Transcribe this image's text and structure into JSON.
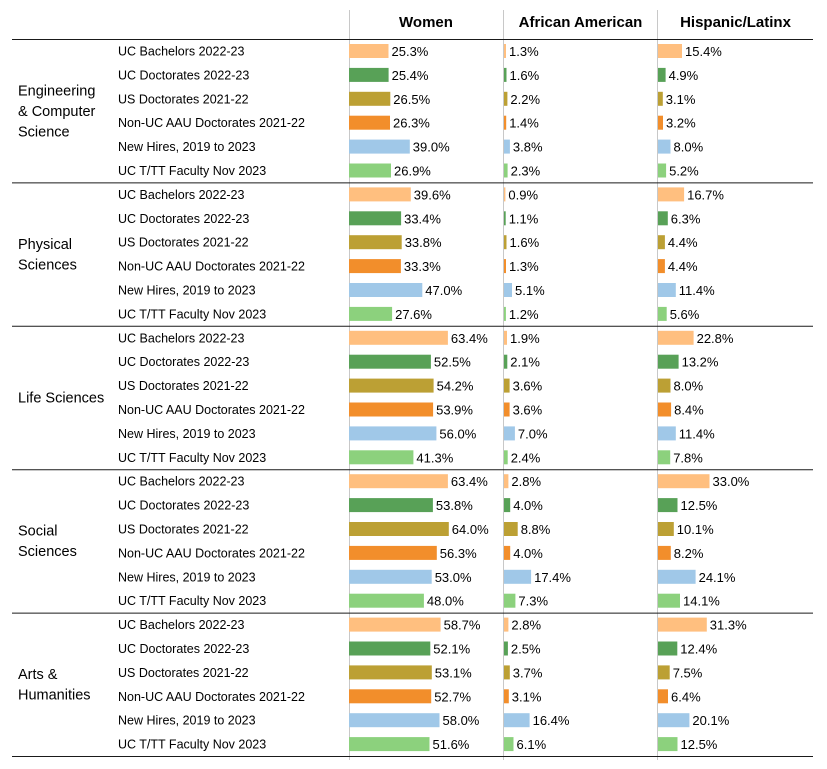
{
  "chart_data": {
    "type": "bar",
    "layout": "grouped-horizontal-bar-table",
    "series": [
      {
        "name": "Women",
        "scale_max": 100
      },
      {
        "name": "African American",
        "scale_max": 100
      },
      {
        "name": "Hispanic/Latinx",
        "scale_max": 100
      }
    ],
    "categories": [
      "UC Bachelors 2022-23",
      "UC Doctorates 2022-23",
      "US Doctorates 2021-22",
      "Non-UC AAU Doctorates 2021-22",
      "New Hires, 2019 to 2023",
      "UC T/TT Faculty Nov 2023"
    ],
    "category_colors": [
      "#FFBF7F",
      "#58A157",
      "#BCA034",
      "#F28E2B",
      "#A0C8E8",
      "#8CD17D"
    ],
    "unit": "%",
    "groups": [
      {
        "name": "Engineering & Computer Science",
        "label_lines": [
          "Engineering",
          "& Computer",
          "Science"
        ],
        "values": [
          [
            25.3,
            1.3,
            15.4
          ],
          [
            25.4,
            1.6,
            4.9
          ],
          [
            26.5,
            2.2,
            3.1
          ],
          [
            26.3,
            1.4,
            3.2
          ],
          [
            39.0,
            3.8,
            8.0
          ],
          [
            26.9,
            2.3,
            5.2
          ]
        ]
      },
      {
        "name": "Physical Sciences",
        "label_lines": [
          "Physical",
          "Sciences"
        ],
        "values": [
          [
            39.6,
            0.9,
            16.7
          ],
          [
            33.4,
            1.1,
            6.3
          ],
          [
            33.8,
            1.6,
            4.4
          ],
          [
            33.3,
            1.3,
            4.4
          ],
          [
            47.0,
            5.1,
            11.4
          ],
          [
            27.6,
            1.2,
            5.6
          ]
        ]
      },
      {
        "name": "Life Sciences",
        "label_lines": [
          "Life Sciences"
        ],
        "values": [
          [
            63.4,
            1.9,
            22.8
          ],
          [
            52.5,
            2.1,
            13.2
          ],
          [
            54.2,
            3.6,
            8.0
          ],
          [
            53.9,
            3.6,
            8.4
          ],
          [
            56.0,
            7.0,
            11.4
          ],
          [
            41.3,
            2.4,
            7.8
          ]
        ]
      },
      {
        "name": "Social Sciences",
        "label_lines": [
          "Social",
          "Sciences"
        ],
        "values": [
          [
            63.4,
            2.8,
            33.0
          ],
          [
            53.8,
            4.0,
            12.5
          ],
          [
            64.0,
            8.8,
            10.1
          ],
          [
            56.3,
            4.0,
            8.2
          ],
          [
            53.0,
            17.4,
            24.1
          ],
          [
            48.0,
            7.3,
            14.1
          ]
        ]
      },
      {
        "name": "Arts & Humanities",
        "label_lines": [
          "Arts &",
          "Humanities"
        ],
        "values": [
          [
            58.7,
            2.8,
            31.3
          ],
          [
            52.1,
            2.5,
            12.4
          ],
          [
            53.1,
            3.7,
            7.5
          ],
          [
            52.7,
            3.1,
            6.4
          ],
          [
            58.0,
            16.4,
            20.1
          ],
          [
            51.6,
            6.1,
            12.5
          ]
        ]
      }
    ]
  }
}
